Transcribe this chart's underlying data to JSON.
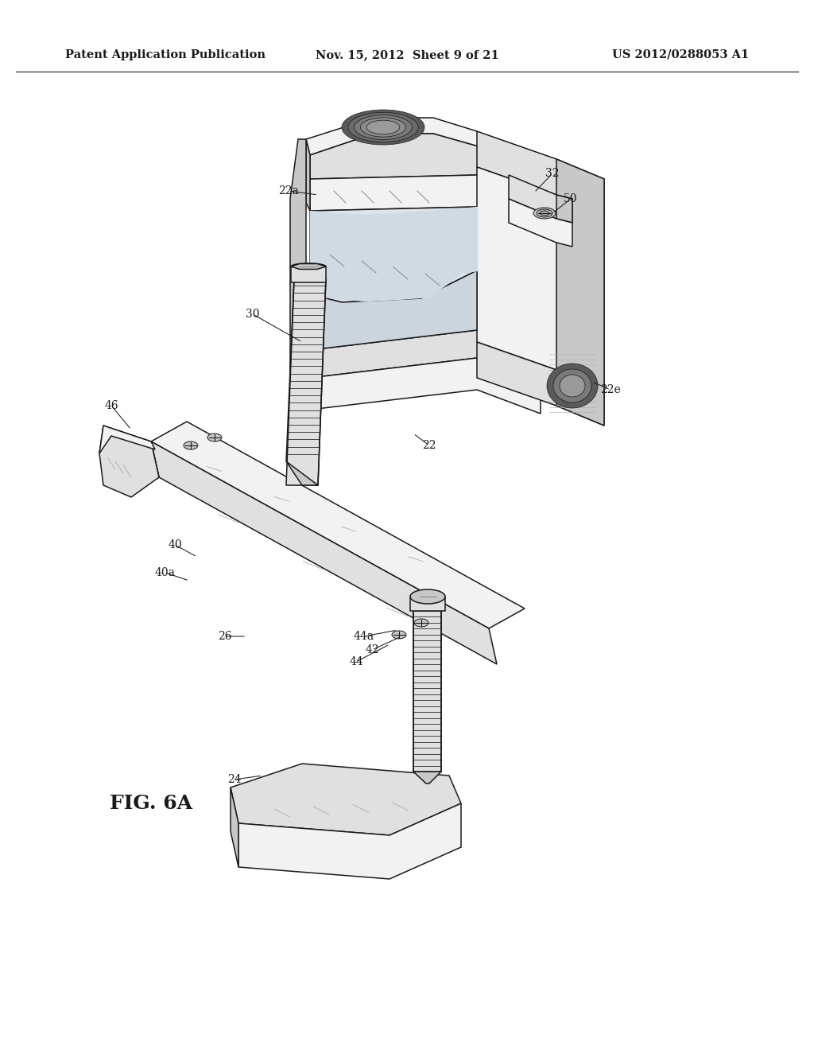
{
  "title_left": "Patent Application Publication",
  "title_center": "Nov. 15, 2012  Sheet 9 of 21",
  "title_right": "US 2012/0288053 A1",
  "fig_label": "FIG. 6A",
  "background_color": "#ffffff",
  "line_color": "#1a1a1a",
  "header_fontsize": 10.5,
  "fig_label_fontsize": 18,
  "ref_label_fontsize": 10,
  "gray_light": "#f2f2f2",
  "gray_mid": "#e0e0e0",
  "gray_dark": "#c8c8c8",
  "gray_darker": "#b0b0b0",
  "gray_shadow": "#d8d8d8"
}
